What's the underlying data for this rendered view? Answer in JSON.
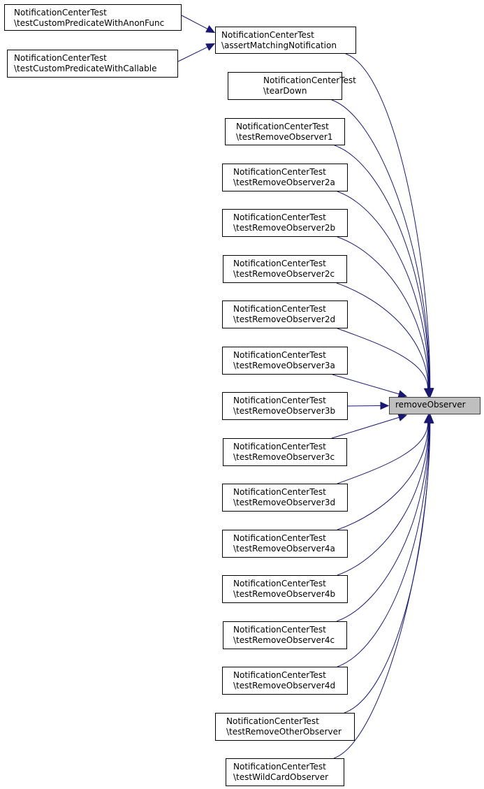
{
  "edge_color": "#191970",
  "target": {
    "label": "removeObserver",
    "fill": "#bfbfbf"
  },
  "callers": [
    {
      "id": "anon",
      "line1": "NotificationCenterTest",
      "line2": "\\testCustomPredicateWithAnonFunc"
    },
    {
      "id": "callable",
      "line1": "NotificationCenterTest",
      "line2": "\\testCustomPredicateWithCallable"
    },
    {
      "id": "assert",
      "line1": "NotificationCenterTest",
      "line2": "\\assertMatchingNotification"
    },
    {
      "id": "teardown",
      "line1": "NotificationCenterTest",
      "line2": "\\tearDown"
    },
    {
      "id": "r1",
      "line1": "NotificationCenterTest",
      "line2": "\\testRemoveObserver1"
    },
    {
      "id": "r2a",
      "line1": "NotificationCenterTest",
      "line2": "\\testRemoveObserver2a"
    },
    {
      "id": "r2b",
      "line1": "NotificationCenterTest",
      "line2": "\\testRemoveObserver2b"
    },
    {
      "id": "r2c",
      "line1": "NotificationCenterTest",
      "line2": "\\testRemoveObserver2c"
    },
    {
      "id": "r2d",
      "line1": "NotificationCenterTest",
      "line2": "\\testRemoveObserver2d"
    },
    {
      "id": "r3a",
      "line1": "NotificationCenterTest",
      "line2": "\\testRemoveObserver3a"
    },
    {
      "id": "r3b",
      "line1": "NotificationCenterTest",
      "line2": "\\testRemoveObserver3b"
    },
    {
      "id": "r3c",
      "line1": "NotificationCenterTest",
      "line2": "\\testRemoveObserver3c"
    },
    {
      "id": "r3d",
      "line1": "NotificationCenterTest",
      "line2": "\\testRemoveObserver3d"
    },
    {
      "id": "r4a",
      "line1": "NotificationCenterTest",
      "line2": "\\testRemoveObserver4a"
    },
    {
      "id": "r4b",
      "line1": "NotificationCenterTest",
      "line2": "\\testRemoveObserver4b"
    },
    {
      "id": "r4c",
      "line1": "NotificationCenterTest",
      "line2": "\\testRemoveObserver4c"
    },
    {
      "id": "r4d",
      "line1": "NotificationCenterTest",
      "line2": "\\testRemoveObserver4d"
    },
    {
      "id": "other",
      "line1": "NotificationCenterTest",
      "line2": "\\testRemoveOtherObserver"
    },
    {
      "id": "wild",
      "line1": "NotificationCenterTest",
      "line2": "\\testWildCardObserver"
    }
  ],
  "edges": [
    [
      "anon",
      "assert"
    ],
    [
      "callable",
      "assert"
    ],
    [
      "assert",
      "target"
    ],
    [
      "teardown",
      "target"
    ],
    [
      "r1",
      "target"
    ],
    [
      "r2a",
      "target"
    ],
    [
      "r2b",
      "target"
    ],
    [
      "r2c",
      "target"
    ],
    [
      "r2d",
      "target"
    ],
    [
      "r3a",
      "target"
    ],
    [
      "r3b",
      "target"
    ],
    [
      "r3c",
      "target"
    ],
    [
      "r3d",
      "target"
    ],
    [
      "r4a",
      "target"
    ],
    [
      "r4b",
      "target"
    ],
    [
      "r4c",
      "target"
    ],
    [
      "r4d",
      "target"
    ],
    [
      "other",
      "target"
    ],
    [
      "wild",
      "target"
    ]
  ]
}
